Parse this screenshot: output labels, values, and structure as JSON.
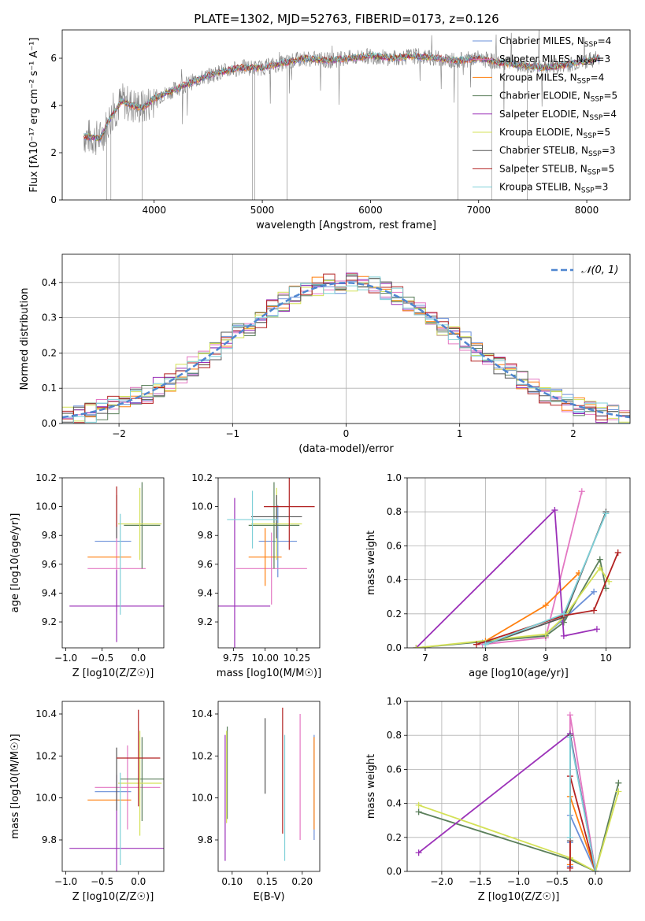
{
  "figure": {
    "title": "PLATE=1302, MJD=52763, FIBERID=0173, z=0.126",
    "colors": [
      "#808080",
      "#e377c2",
      "#ff7f0e",
      "#5b7f5b",
      "#9b30b8",
      "#d4e157",
      "#555555",
      "#b22222",
      "#7fd0d8"
    ],
    "model_colors": {
      "Chabrier MILES": "#6a8fd8",
      "Salpeter MILES": "#e377c2",
      "Kroupa MILES": "#ff7f0e",
      "Chabrier ELODIE": "#5b7f5b",
      "Salpeter ELODIE": "#9b30b8",
      "Kroupa ELODIE": "#d4e157",
      "Chabrier STELIB": "#555555",
      "Salpeter STELIB": "#b22222",
      "Kroupa STELIB": "#7fd0d8"
    }
  },
  "chart_data": [
    {
      "id": "spectrum",
      "type": "line",
      "xlabel": "wavelength [Angstrom, rest frame]",
      "ylabel": "Flux [f",
      "ylabel_full": "Flux [fλ10⁻¹⁷ erg cm⁻² s⁻¹ A⁻¹]",
      "xlim": [
        3150,
        8400
      ],
      "ylim": [
        0,
        7.2
      ],
      "xticks": [
        4000,
        5000,
        6000,
        7000,
        8000
      ],
      "yticks": [
        0,
        2,
        4,
        6
      ],
      "legend_position": "top-right",
      "legend": [
        "Chabrier MILES, N_SSP=4",
        "Salpeter MILES, N_SSP=3",
        "Kroupa MILES, N_SSP=4",
        "Chabrier ELODIE, N_SSP=5",
        "Salpeter ELODIE, N_SSP=4",
        "Kroupa ELODIE, N_SSP=5",
        "Chabrier STELIB, N_SSP=3",
        "Salpeter STELIB, N_SSP=5",
        "Kroupa STELIB, N_SSP=3"
      ],
      "continuum": {
        "x": [
          3350,
          3500,
          3600,
          3700,
          3800,
          3900,
          4000,
          4200,
          4400,
          4600,
          4800,
          5000,
          5200,
          5400,
          5600,
          5800,
          6000,
          6200,
          6400,
          6600,
          6800,
          7000,
          7200,
          7400,
          7600,
          7800,
          8000,
          8100
        ],
        "y": [
          2.7,
          2.6,
          3.5,
          4.2,
          4.0,
          3.9,
          4.3,
          4.7,
          5.1,
          5.4,
          5.6,
          5.6,
          5.8,
          6.0,
          5.9,
          6.0,
          6.1,
          6.0,
          6.1,
          6.0,
          5.9,
          6.0,
          5.8,
          5.7,
          5.6,
          5.7,
          5.9,
          6.0
        ]
      }
    },
    {
      "id": "residuals",
      "type": "histogram",
      "xlabel": "(data-model)/error",
      "ylabel": "Normed distribution",
      "xlim": [
        -2.5,
        2.5
      ],
      "ylim": [
        0,
        0.48
      ],
      "xticks": [
        -2,
        -1,
        0,
        1,
        2
      ],
      "yticks": [
        0.0,
        0.1,
        0.2,
        0.3,
        0.4
      ],
      "legend": [
        "𝒩(0, 1)"
      ],
      "legend_position": "top-right",
      "bin_width": 0.1,
      "gaussian": {
        "mean": 0,
        "sigma": 1
      }
    },
    {
      "id": "age-vs-Z",
      "type": "errorbar",
      "xlabel": "Z [log10(Z/Z☉)]",
      "ylabel": "age  [log10(age/yr)]",
      "xlim": [
        -1.05,
        0.35
      ],
      "ylim": [
        9.02,
        10.2
      ],
      "xticks": [
        -1.0,
        -0.5,
        0.0
      ],
      "yticks": [
        9.2,
        9.4,
        9.6,
        9.8,
        10.0,
        10.2
      ],
      "points": [
        {
          "model": "Chabrier MILES",
          "x": -0.35,
          "xerr": 0.25,
          "y": 9.76,
          "yerr": 0.0
        },
        {
          "model": "Salpeter MILES",
          "x": -0.3,
          "xerr": 0.4,
          "y": 9.57,
          "yerr": 0.3
        },
        {
          "model": "Kroupa MILES",
          "x": -0.4,
          "xerr": 0.3,
          "y": 9.65,
          "yerr": 0.0
        },
        {
          "model": "Chabrier ELODIE",
          "x": 0.05,
          "xerr": 0.25,
          "y": 9.87,
          "yerr": 0.3
        },
        {
          "model": "Salpeter ELODIE",
          "x": -0.3,
          "xerr": 0.65,
          "y": 9.31,
          "yerr": 0.25
        },
        {
          "model": "Kroupa ELODIE",
          "x": 0.02,
          "xerr": 0.3,
          "y": 9.88,
          "yerr": 0.25
        },
        {
          "model": "Chabrier STELIB",
          "x": -0.3,
          "xerr": 0.0,
          "y": 9.93,
          "yerr": 0.15
        },
        {
          "model": "Salpeter STELIB",
          "x": -0.3,
          "xerr": 0.0,
          "y": 10.0,
          "yerr": 0.14
        },
        {
          "model": "Kroupa STELIB",
          "x": -0.25,
          "xerr": 0.0,
          "y": 9.6,
          "yerr": 0.35
        }
      ]
    },
    {
      "id": "age-vs-mass",
      "type": "errorbar",
      "xlabel": "mass [log10(M/M☉)]",
      "ylabel": "",
      "xlim": [
        9.63,
        10.43
      ],
      "ylim": [
        9.02,
        10.2
      ],
      "xticks": [
        9.75,
        10.0,
        10.25
      ],
      "yticks": [
        9.2,
        9.4,
        9.6,
        9.8,
        10.0,
        10.2
      ],
      "points": [
        {
          "model": "Chabrier MILES",
          "x": 10.1,
          "xerr": 0.15,
          "y": 9.76,
          "yerr": 0.25
        },
        {
          "model": "Salpeter MILES",
          "x": 10.05,
          "xerr": 0.28,
          "y": 9.57,
          "yerr": 0.25
        },
        {
          "model": "Kroupa MILES",
          "x": 10.0,
          "xerr": 0.13,
          "y": 9.65,
          "yerr": 0.2
        },
        {
          "model": "Chabrier ELODIE",
          "x": 10.07,
          "xerr": 0.2,
          "y": 9.87,
          "yerr": 0.3
        },
        {
          "model": "Salpeter ELODIE",
          "x": 9.76,
          "xerr": 0.28,
          "y": 9.31,
          "yerr": 0.75
        },
        {
          "model": "Kroupa ELODIE",
          "x": 10.09,
          "xerr": 0.2,
          "y": 9.88,
          "yerr": 0.25
        },
        {
          "model": "Chabrier STELIB",
          "x": 10.09,
          "xerr": 0.2,
          "y": 9.93,
          "yerr": 0.15
        },
        {
          "model": "Salpeter STELIB",
          "x": 10.19,
          "xerr": 0.2,
          "y": 10.0,
          "yerr": 0.3
        },
        {
          "model": "Kroupa STELIB",
          "x": 9.9,
          "xerr": 0.2,
          "y": 9.91,
          "yerr": 0.2
        }
      ]
    },
    {
      "id": "massweight-vs-age",
      "type": "line",
      "xlabel": "age  [log10(age/yr)]",
      "ylabel": "mass weight",
      "xlim": [
        6.7,
        10.4
      ],
      "ylim": [
        0,
        1.0
      ],
      "xticks": [
        7,
        8,
        9,
        10
      ],
      "yticks": [
        0.0,
        0.2,
        0.4,
        0.6,
        0.8,
        1.0
      ],
      "series": [
        {
          "model": "Chabrier MILES",
          "x": [
            7.95,
            9.0,
            9.3,
            9.8
          ],
          "y": [
            0.03,
            0.08,
            0.17,
            0.33
          ]
        },
        {
          "model": "Salpeter MILES",
          "x": [
            7.95,
            9.0,
            9.6
          ],
          "y": [
            0.02,
            0.06,
            0.92
          ]
        },
        {
          "model": "Kroupa MILES",
          "x": [
            8.0,
            9.0,
            9.55
          ],
          "y": [
            0.04,
            0.25,
            0.44
          ]
        },
        {
          "model": "Chabrier ELODIE",
          "x": [
            6.85,
            9.0,
            9.3,
            9.9,
            10.0
          ],
          "y": [
            0.0,
            0.07,
            0.15,
            0.52,
            0.35
          ]
        },
        {
          "model": "Salpeter ELODIE",
          "x": [
            6.85,
            9.15,
            9.3,
            9.85
          ],
          "y": [
            0.0,
            0.81,
            0.07,
            0.11
          ]
        },
        {
          "model": "Kroupa ELODIE",
          "x": [
            6.85,
            9.0,
            9.3,
            9.9,
            10.05
          ],
          "y": [
            0.0,
            0.08,
            0.18,
            0.47,
            0.39
          ]
        },
        {
          "model": "Chabrier STELIB",
          "x": [
            8.0,
            9.3,
            10.0
          ],
          "y": [
            0.02,
            0.18,
            0.8
          ]
        },
        {
          "model": "Salpeter STELIB",
          "x": [
            7.85,
            9.3,
            9.8,
            10.2
          ],
          "y": [
            0.02,
            0.19,
            0.22,
            0.56
          ]
        },
        {
          "model": "Kroupa STELIB",
          "x": [
            8.0,
            9.3,
            10.0
          ],
          "y": [
            0.02,
            0.2,
            0.79
          ]
        }
      ]
    },
    {
      "id": "mass-vs-Z",
      "type": "errorbar",
      "xlabel": "Z [log10(Z/Z☉)]",
      "ylabel": "mass [log10(M/M☉)]",
      "xlim": [
        -1.05,
        0.35
      ],
      "ylim": [
        9.65,
        10.46
      ],
      "xticks": [
        -1.0,
        -0.5,
        0.0
      ],
      "yticks": [
        9.8,
        10.0,
        10.2,
        10.4
      ],
      "points": [
        {
          "model": "Chabrier MILES",
          "x": -0.35,
          "xerr": 0.25,
          "y": 10.03,
          "yerr": 0.0
        },
        {
          "model": "Salpeter MILES",
          "x": -0.15,
          "xerr": 0.45,
          "y": 10.05,
          "yerr": 0.2
        },
        {
          "model": "Kroupa MILES",
          "x": -0.4,
          "xerr": 0.3,
          "y": 9.99,
          "yerr": 0.0
        },
        {
          "model": "Chabrier ELODIE",
          "x": 0.05,
          "xerr": 0.3,
          "y": 10.09,
          "yerr": 0.2
        },
        {
          "model": "Salpeter ELODIE",
          "x": -0.3,
          "xerr": 0.65,
          "y": 9.76,
          "yerr": 0.35
        },
        {
          "model": "Kroupa ELODIE",
          "x": 0.02,
          "xerr": 0.3,
          "y": 10.07,
          "yerr": 0.25
        },
        {
          "model": "Chabrier STELIB",
          "x": -0.3,
          "xerr": 0.0,
          "y": 10.09,
          "yerr": 0.15
        },
        {
          "model": "Salpeter STELIB",
          "x": 0.0,
          "xerr": 0.3,
          "y": 10.19,
          "yerr": 0.23
        },
        {
          "model": "Kroupa STELIB",
          "x": -0.25,
          "xerr": 0.0,
          "y": 9.9,
          "yerr": 0.22
        }
      ]
    },
    {
      "id": "mass-vs-ebv",
      "type": "errorbar",
      "xlabel": "E(B-V)",
      "ylabel": "",
      "xlim": [
        0.08,
        0.225
      ],
      "ylim": [
        9.65,
        10.46
      ],
      "xticks": [
        0.1,
        0.15,
        0.2
      ],
      "yticks": [
        9.8,
        10.0,
        10.2,
        10.4
      ],
      "points": [
        {
          "model": "Chabrier MILES",
          "x": 0.217,
          "y": 10.05,
          "yerr": 0.25
        },
        {
          "model": "Salpeter MILES",
          "x": 0.197,
          "y": 10.1,
          "yerr": 0.3
        },
        {
          "model": "Kroupa MILES",
          "x": 0.217,
          "y": 10.07,
          "yerr": 0.22
        },
        {
          "model": "Chabrier ELODIE",
          "x": 0.093,
          "y": 10.12,
          "yerr": 0.22
        },
        {
          "model": "Salpeter ELODIE",
          "x": 0.09,
          "y": 10.0,
          "yerr": 0.3
        },
        {
          "model": "Kroupa ELODIE",
          "x": 0.092,
          "y": 10.1,
          "yerr": 0.22
        },
        {
          "model": "Chabrier STELIB",
          "x": 0.147,
          "y": 10.2,
          "yerr": 0.18
        },
        {
          "model": "Salpeter STELIB",
          "x": 0.172,
          "y": 10.13,
          "yerr": 0.3
        },
        {
          "model": "Kroupa STELIB",
          "x": 0.175,
          "y": 10.0,
          "yerr": 0.3
        }
      ]
    },
    {
      "id": "massweight-vs-Z",
      "type": "line",
      "xlabel": "Z [log10(Z/Z☉)]",
      "ylabel": "mass weight",
      "xlim": [
        -2.45,
        0.45
      ],
      "ylim": [
        0,
        1.0
      ],
      "xticks": [
        -2.0,
        -1.5,
        -1.0,
        -0.5,
        0.0
      ],
      "yticks": [
        0.0,
        0.2,
        0.4,
        0.6,
        0.8,
        1.0
      ],
      "series": [
        {
          "model": "Chabrier MILES",
          "x": [
            -0.33,
            -0.33,
            -0.33,
            0.0
          ],
          "y": [
            0.03,
            0.17,
            0.33,
            0.0
          ]
        },
        {
          "model": "Salpeter MILES",
          "x": [
            -0.33,
            -0.33,
            0.0
          ],
          "y": [
            0.02,
            0.92,
            0.0
          ]
        },
        {
          "model": "Kroupa MILES",
          "x": [
            -0.33,
            -0.33,
            0.0
          ],
          "y": [
            0.04,
            0.44,
            0.0
          ]
        },
        {
          "model": "Chabrier ELODIE",
          "x": [
            -2.3,
            -0.33,
            0.0,
            0.3
          ],
          "y": [
            0.35,
            0.07,
            0.0,
            0.52
          ]
        },
        {
          "model": "Salpeter ELODIE",
          "x": [
            -2.3,
            -0.33,
            0.0
          ],
          "y": [
            0.11,
            0.81,
            0.0
          ]
        },
        {
          "model": "Kroupa ELODIE",
          "x": [
            -2.3,
            -0.33,
            0.0,
            0.3
          ],
          "y": [
            0.39,
            0.08,
            0.0,
            0.47
          ]
        },
        {
          "model": "Chabrier STELIB",
          "x": [
            -0.33,
            -0.33,
            0.0
          ],
          "y": [
            0.18,
            0.8,
            0.0
          ]
        },
        {
          "model": "Salpeter STELIB",
          "x": [
            -0.33,
            -0.33,
            0.0
          ],
          "y": [
            0.02,
            0.56,
            0.0
          ]
        },
        {
          "model": "Kroupa STELIB",
          "x": [
            -0.33,
            -0.33,
            0.0
          ],
          "y": [
            0.2,
            0.79,
            0.0
          ]
        }
      ]
    }
  ]
}
